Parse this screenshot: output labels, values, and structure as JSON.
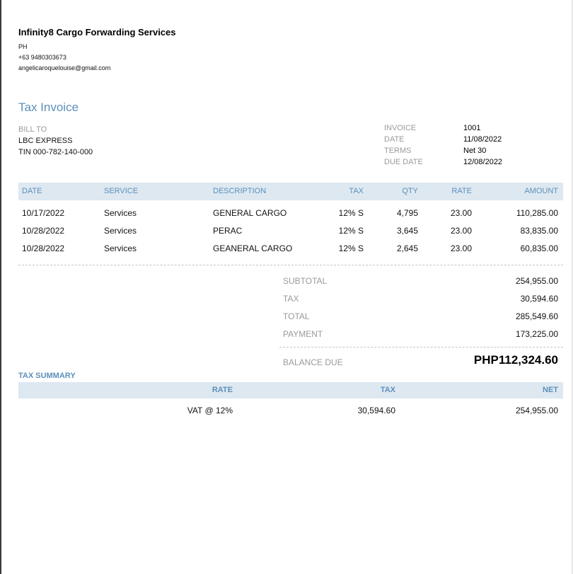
{
  "company": {
    "name": "Infinity8 Cargo Forwarding Services",
    "country": "PH",
    "phone": "+63 9480303673",
    "email": "angelicaroquelouise@gmail.com"
  },
  "document": {
    "title": "Tax Invoice"
  },
  "bill_to": {
    "label": "BILL TO",
    "name": "LBC EXPRESS",
    "tin": "TIN 000-782-140-000"
  },
  "meta": {
    "invoice_label": "INVOICE",
    "invoice_value": "1001",
    "date_label": "DATE",
    "date_value": "11/08/2022",
    "terms_label": "TERMS",
    "terms_value": "Net 30",
    "due_label": "DUE DATE",
    "due_value": "12/08/2022"
  },
  "items_table": {
    "headers": {
      "date": "DATE",
      "service": "SERVICE",
      "description": "DESCRIPTION",
      "tax": "TAX",
      "qty": "QTY",
      "rate": "RATE",
      "amount": "AMOUNT"
    },
    "rows": [
      {
        "date": "10/17/2022",
        "service": "Services",
        "description": "GENERAL CARGO",
        "tax": "12% S",
        "qty": "4,795",
        "rate": "23.00",
        "amount": "110,285.00"
      },
      {
        "date": "10/28/2022",
        "service": "Services",
        "description": "PERAC",
        "tax": "12% S",
        "qty": "3,645",
        "rate": "23.00",
        "amount": "83,835.00"
      },
      {
        "date": "10/28/2022",
        "service": "Services",
        "description": "GEANERAL CARGO",
        "tax": "12% S",
        "qty": "2,645",
        "rate": "23.00",
        "amount": "60,835.00"
      }
    ]
  },
  "totals": {
    "subtotal_label": "SUBTOTAL",
    "subtotal_value": "254,955.00",
    "tax_label": "TAX",
    "tax_value": "30,594.60",
    "total_label": "TOTAL",
    "total_value": "285,549.60",
    "payment_label": "PAYMENT",
    "payment_value": "173,225.00",
    "balance_label": "BALANCE DUE",
    "balance_value": "PHP112,324.60"
  },
  "tax_summary": {
    "title": "TAX SUMMARY",
    "headers": {
      "rate": "RATE",
      "tax": "TAX",
      "net": "NET"
    },
    "row": {
      "rate": "VAT @ 12%",
      "tax": "30,594.60",
      "net": "254,955.00"
    }
  },
  "colors": {
    "accent": "#5c8fbb",
    "header_bg": "#dde8f1",
    "muted_text": "#9a9a9a"
  }
}
